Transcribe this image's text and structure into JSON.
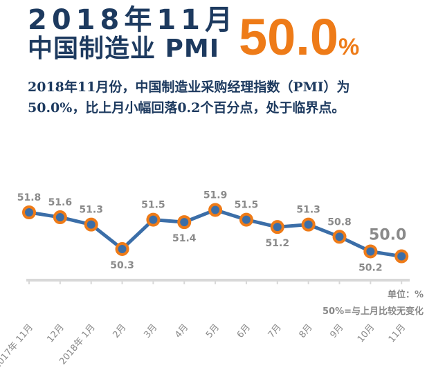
{
  "header": {
    "title_line1": "2018年11月",
    "title_line2": "中国制造业 PMI",
    "headline_value": "50.0",
    "headline_unit": "%"
  },
  "description": "2018年11月份，中国制造业采购经理指数（PMI）为50.0%，比上月小幅回落0.2个百分点，处于临界点。",
  "notes": {
    "unit": "单位：%",
    "baseline": "50%=与上月比较无变化"
  },
  "colors": {
    "title": "#1d3a5f",
    "accent": "#ee7b18",
    "line": "#3b6ea8",
    "label": "#8a8a8a"
  },
  "chart_data": {
    "type": "line",
    "categories": [
      "2017年 11月",
      "12月",
      "2018年 1月",
      "2月",
      "3月",
      "4月",
      "5月",
      "6月",
      "7月",
      "8月",
      "9月",
      "10月",
      "11月"
    ],
    "values": [
      51.8,
      51.6,
      51.3,
      50.3,
      51.5,
      51.4,
      51.9,
      51.5,
      51.2,
      51.3,
      50.8,
      50.2,
      50.0
    ],
    "title": "",
    "xlabel": "",
    "ylabel": "",
    "grid": false
  }
}
